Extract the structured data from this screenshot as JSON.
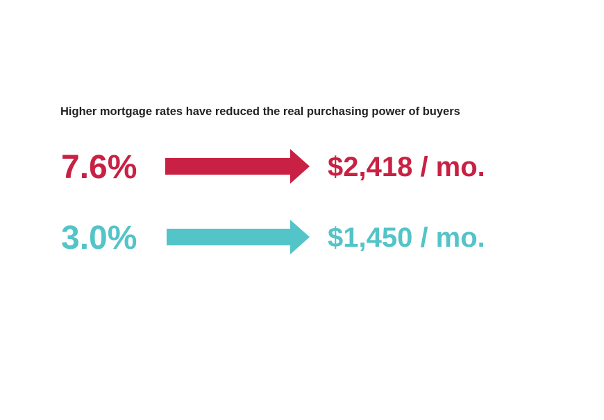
{
  "title": "Higher mortgage rates have reduced the real purchasing power of buyers",
  "rows": [
    {
      "rate": "7.6%",
      "payment": "$2,418 / mo.",
      "color": "#c92143"
    },
    {
      "rate": "3.0%",
      "payment": "$1,450 / mo.",
      "color": "#53c4c7"
    }
  ]
}
